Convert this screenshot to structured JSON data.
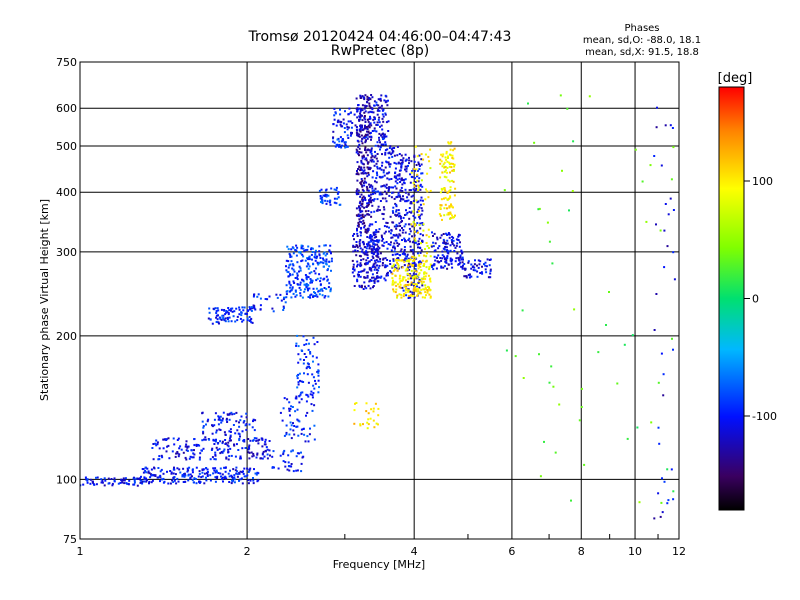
{
  "chart_data": {
    "type": "scatter",
    "title": "Tromsø 20120424 04:46:00–04:47:43",
    "subtitle": "RwPretec (8p)",
    "xlabel": "Frequency [MHz]",
    "ylabel": "Stationary phase Virtual Height [km]",
    "x_scale": "log",
    "y_scale": "log",
    "xlim": [
      1,
      12
    ],
    "ylim": [
      75,
      750
    ],
    "grid": true,
    "x_ticks": [
      1,
      2,
      4,
      6,
      8,
      10,
      12
    ],
    "y_ticks": [
      75,
      100,
      200,
      300,
      400,
      500,
      600,
      750
    ],
    "phases_legend": {
      "title": "Phases",
      "line1": "mean, sd,O: -88.0, 18.1",
      "line2": "mean, sd,X: 91.5, 18.8"
    },
    "colorbar": {
      "label": "[deg]",
      "range": [
        -180,
        180
      ],
      "ticks": [
        100,
        0,
        -100
      ]
    },
    "clusters": [
      {
        "x": [
          1.0,
          1.32
        ],
        "y": [
          97,
          101
        ],
        "phase": -105,
        "count": 70
      },
      {
        "x": [
          1.28,
          2.1
        ],
        "y": [
          98,
          106
        ],
        "phase": -100,
        "count": 220
      },
      {
        "x": [
          1.35,
          2.2
        ],
        "y": [
          110,
          122
        ],
        "phase": -108,
        "count": 170
      },
      {
        "x": [
          1.65,
          2.1
        ],
        "y": [
          120,
          138
        ],
        "phase": -100,
        "count": 90
      },
      {
        "x": [
          2.15,
          2.55
        ],
        "y": [
          104,
          116
        ],
        "phase": -100,
        "count": 40
      },
      {
        "x": [
          2.3,
          2.65
        ],
        "y": [
          120,
          150
        ],
        "phase": -95,
        "count": 60
      },
      {
        "x": [
          2.45,
          2.7
        ],
        "y": [
          150,
          200
        ],
        "phase": -90,
        "count": 70
      },
      {
        "x": [
          1.7,
          2.05
        ],
        "y": [
          212,
          230
        ],
        "phase": -95,
        "count": 90
      },
      {
        "x": [
          2.05,
          2.35
        ],
        "y": [
          225,
          245
        ],
        "phase": -95,
        "count": 30
      },
      {
        "x": [
          2.35,
          2.85
        ],
        "y": [
          240,
          310
        ],
        "phase": -85,
        "count": 240
      },
      {
        "x": [
          2.7,
          2.95
        ],
        "y": [
          375,
          410
        ],
        "phase": -85,
        "count": 40
      },
      {
        "x": [
          2.85,
          3.05
        ],
        "y": [
          495,
          520
        ],
        "phase": -90,
        "count": 30
      },
      {
        "x": [
          2.85,
          3.3
        ],
        "y": [
          520,
          600
        ],
        "phase": -105,
        "count": 70
      },
      {
        "x": [
          3.1,
          3.45
        ],
        "y": [
          250,
          330
        ],
        "phase": -115,
        "count": 180
      },
      {
        "x": [
          3.15,
          3.35
        ],
        "y": [
          330,
          640
        ],
        "phase": -125,
        "count": 300
      },
      {
        "x": [
          3.35,
          3.6
        ],
        "y": [
          260,
          640
        ],
        "phase": -110,
        "count": 260
      },
      {
        "x": [
          3.6,
          3.8
        ],
        "y": [
          270,
          500
        ],
        "phase": -110,
        "count": 160
      },
      {
        "x": [
          3.8,
          4.15
        ],
        "y": [
          240,
          480
        ],
        "phase": -110,
        "count": 260
      },
      {
        "x": [
          3.65,
          4.3
        ],
        "y": [
          240,
          290
        ],
        "phase": 100,
        "count": 190
      },
      {
        "x": [
          3.95,
          4.3
        ],
        "y": [
          290,
          510
        ],
        "phase": 95,
        "count": 60
      },
      {
        "x": [
          4.45,
          4.75
        ],
        "y": [
          350,
          510
        ],
        "phase": 100,
        "count": 110
      },
      {
        "x": [
          4.3,
          4.9
        ],
        "y": [
          275,
          330
        ],
        "phase": -110,
        "count": 140
      },
      {
        "x": [
          4.9,
          5.5
        ],
        "y": [
          265,
          290
        ],
        "phase": -110,
        "count": 50
      },
      {
        "x": [
          3.1,
          3.45
        ],
        "y": [
          127,
          145
        ],
        "phase": 105,
        "count": 25
      },
      {
        "x": [
          5.8,
          11.8
        ],
        "y": [
          80,
          650
        ],
        "phase": 30,
        "count": 55
      },
      {
        "x": [
          10.8,
          11.8
        ],
        "y": [
          80,
          650
        ],
        "phase": -110,
        "count": 35
      }
    ]
  }
}
